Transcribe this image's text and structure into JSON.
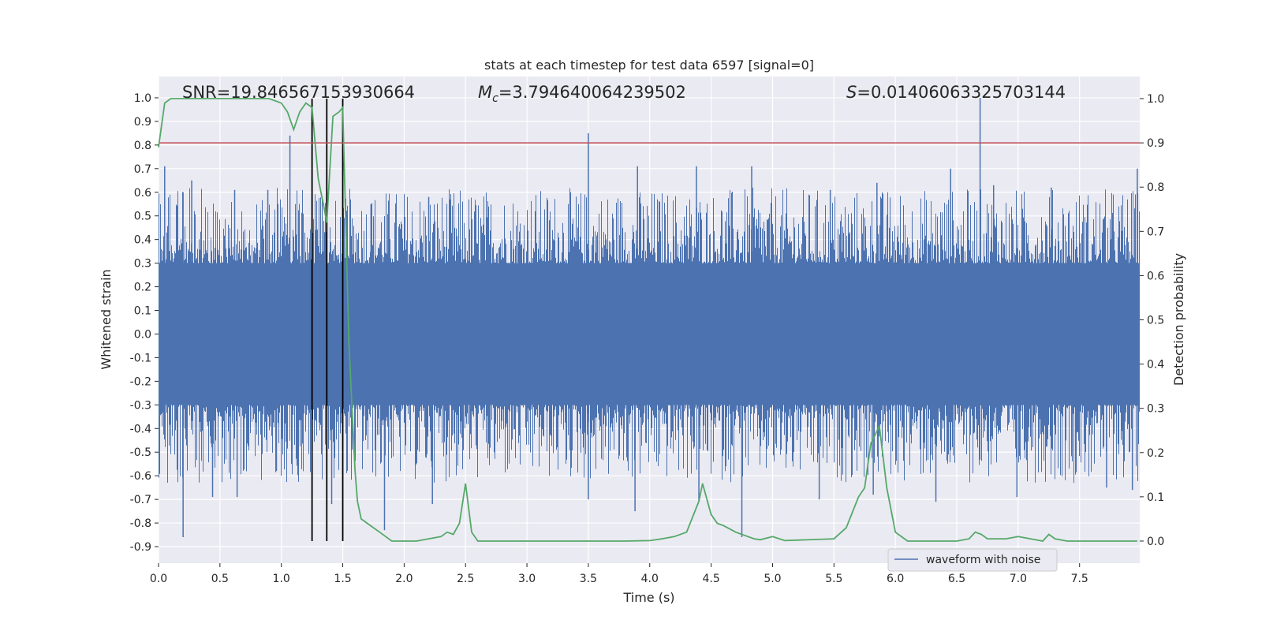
{
  "chart_data": {
    "type": "line",
    "title": "stats at each timestep for test data 6597 [signal=0]",
    "xlabel": "Time (s)",
    "ylabel_left": "Whitened strain",
    "ylabel_right": "Detection probability",
    "xlim": [
      0.0,
      7.99
    ],
    "ylim_left": [
      -0.97,
      1.09
    ],
    "ylim_right": [
      -0.05,
      1.05
    ],
    "x_ticks": [
      "0.0",
      "0.5",
      "1.0",
      "1.5",
      "2.0",
      "2.5",
      "3.0",
      "3.5",
      "4.0",
      "4.5",
      "5.0",
      "5.5",
      "6.0",
      "6.5",
      "7.0",
      "7.5"
    ],
    "y_ticks_left": [
      "1.0",
      "0.9",
      "0.8",
      "0.7",
      "0.6",
      "0.5",
      "0.4",
      "0.3",
      "0.2",
      "0.1",
      "0.0",
      "-0.1",
      "-0.2",
      "-0.3",
      "-0.4",
      "-0.5",
      "-0.6",
      "-0.7",
      "-0.8",
      "-0.9"
    ],
    "y_ticks_right": [
      "1.0",
      "0.9",
      "0.8",
      "0.7",
      "0.6",
      "0.5",
      "0.4",
      "0.3",
      "0.2",
      "0.1",
      "0.0"
    ],
    "grid": true,
    "legend": {
      "position": "lower-right",
      "entries": [
        "waveform with noise"
      ]
    },
    "annotations": {
      "snr": "SNR=19.846567153930664",
      "mc_symbol": "M",
      "mc_sub": "c",
      "mc_value": "=3.794640064239502",
      "s_symbol": "S",
      "s_value": "=0.01406063325703144"
    },
    "threshold": 0.9,
    "vertical_markers": [
      1.25,
      1.37,
      1.5
    ],
    "waveform": {
      "name": "waveform with noise",
      "envelope_upper": 0.3,
      "envelope_lower": -0.3,
      "peaks": [
        {
          "x": 0.05,
          "y": 0.71
        },
        {
          "x": 0.2,
          "y": 0.6
        },
        {
          "x": 0.27,
          "y": 0.65
        },
        {
          "x": 0.62,
          "y": 0.61
        },
        {
          "x": 0.89,
          "y": 0.61
        },
        {
          "x": 1.07,
          "y": 0.84
        },
        {
          "x": 1.73,
          "y": 0.55
        },
        {
          "x": 2.2,
          "y": 0.58
        },
        {
          "x": 3.5,
          "y": 0.85
        },
        {
          "x": 3.9,
          "y": 0.71
        },
        {
          "x": 4.38,
          "y": 0.71
        },
        {
          "x": 4.83,
          "y": 0.71
        },
        {
          "x": 5.47,
          "y": 0.61
        },
        {
          "x": 5.85,
          "y": 0.64
        },
        {
          "x": 6.45,
          "y": 0.7
        },
        {
          "x": 6.69,
          "y": 1.0
        },
        {
          "x": 6.8,
          "y": 0.63
        },
        {
          "x": 7.27,
          "y": 0.62
        },
        {
          "x": 7.97,
          "y": 0.7
        }
      ],
      "troughs": [
        {
          "x": 0.2,
          "y": -0.86
        },
        {
          "x": 0.44,
          "y": -0.69
        },
        {
          "x": 0.64,
          "y": -0.69
        },
        {
          "x": 0.96,
          "y": -0.58
        },
        {
          "x": 1.41,
          "y": -0.72
        },
        {
          "x": 1.84,
          "y": -0.83
        },
        {
          "x": 2.23,
          "y": -0.72
        },
        {
          "x": 3.5,
          "y": -0.7
        },
        {
          "x": 3.88,
          "y": -0.75
        },
        {
          "x": 4.4,
          "y": -0.71
        },
        {
          "x": 4.75,
          "y": -0.86
        },
        {
          "x": 5.38,
          "y": -0.7
        },
        {
          "x": 5.82,
          "y": -0.68
        },
        {
          "x": 6.33,
          "y": -0.71
        },
        {
          "x": 6.99,
          "y": -0.69
        },
        {
          "x": 7.72,
          "y": -0.65
        },
        {
          "x": 7.93,
          "y": -0.66
        }
      ]
    },
    "probability": {
      "x": [
        0.0,
        0.05,
        0.1,
        0.2,
        0.3,
        0.5,
        0.7,
        0.9,
        1.0,
        1.05,
        1.1,
        1.15,
        1.2,
        1.25,
        1.3,
        1.35,
        1.37,
        1.42,
        1.47,
        1.5,
        1.55,
        1.6,
        1.62,
        1.65,
        1.7,
        1.75,
        1.8,
        1.85,
        1.9,
        2.0,
        2.1,
        2.2,
        2.3,
        2.35,
        2.4,
        2.45,
        2.5,
        2.55,
        2.6,
        2.8,
        3.0,
        3.2,
        3.5,
        3.8,
        4.0,
        4.1,
        4.2,
        4.3,
        4.4,
        4.43,
        4.5,
        4.55,
        4.6,
        4.7,
        4.8,
        4.85,
        4.9,
        5.0,
        5.1,
        5.5,
        5.6,
        5.7,
        5.75,
        5.8,
        5.87,
        5.93,
        6.0,
        6.1,
        6.3,
        6.5,
        6.6,
        6.65,
        6.7,
        6.75,
        6.8,
        6.9,
        7.0,
        7.1,
        7.2,
        7.25,
        7.3,
        7.4,
        7.6,
        7.8,
        7.97
      ],
      "y": [
        0.89,
        0.99,
        1.0,
        1.0,
        1.0,
        1.0,
        1.0,
        1.0,
        0.99,
        0.97,
        0.93,
        0.97,
        0.99,
        0.98,
        0.82,
        0.75,
        0.72,
        0.96,
        0.97,
        0.98,
        0.45,
        0.16,
        0.09,
        0.05,
        0.04,
        0.03,
        0.02,
        0.01,
        0.0,
        0.0,
        0.0,
        0.005,
        0.01,
        0.02,
        0.015,
        0.04,
        0.13,
        0.02,
        0.0,
        0.0,
        0.0,
        0.0,
        0.0,
        0.0,
        0.001,
        0.005,
        0.01,
        0.02,
        0.09,
        0.13,
        0.06,
        0.04,
        0.035,
        0.02,
        0.01,
        0.005,
        0.003,
        0.01,
        0.001,
        0.005,
        0.03,
        0.1,
        0.12,
        0.22,
        0.26,
        0.12,
        0.02,
        0.0,
        0.0,
        0.0,
        0.005,
        0.02,
        0.015,
        0.005,
        0.005,
        0.005,
        0.01,
        0.005,
        0.0,
        0.015,
        0.005,
        0.0,
        0.0,
        0.0,
        0.0
      ]
    }
  },
  "colors": {
    "axes_bg": "#eaeaf2",
    "grid": "#ffffff",
    "waveform": "#4c72b0",
    "probability": "#55a868",
    "threshold": "#c44e52",
    "markers": "#000000"
  }
}
